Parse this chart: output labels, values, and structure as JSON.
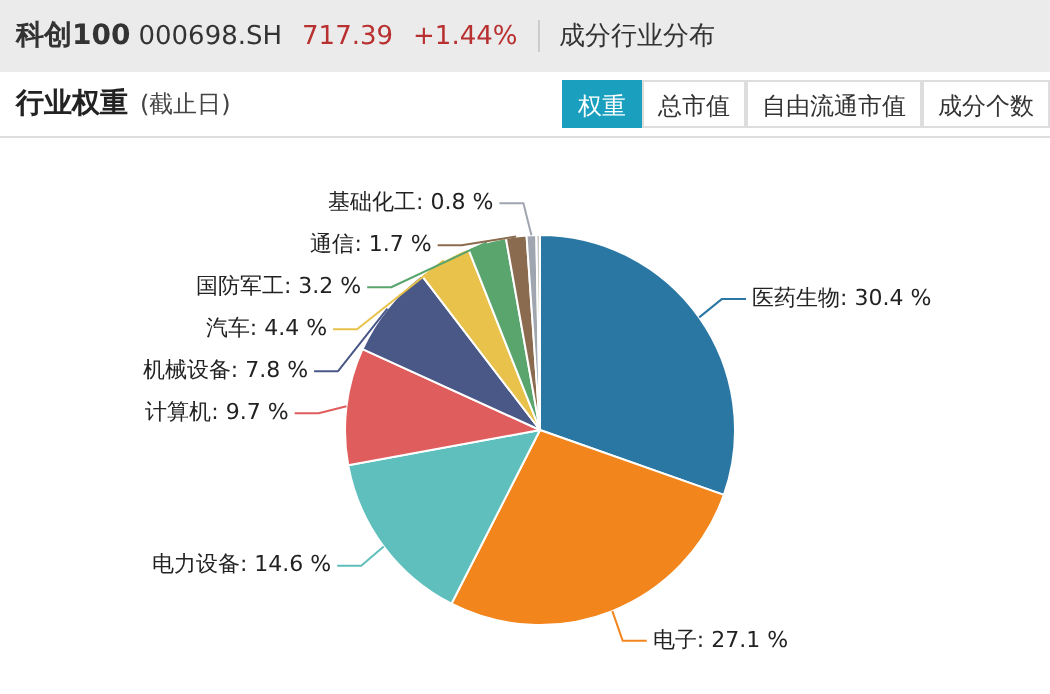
{
  "chart_data": {
    "type": "pie",
    "title": "行业权重",
    "annotations": [
      "科创100",
      "000698.SH",
      "717.39",
      "+1.44%",
      "成分行业分布",
      "(截止日)",
      "权重",
      "总市值",
      "自由流通市值",
      "成分个数"
    ],
    "categories": [
      "医药生物",
      "电子",
      "电力设备",
      "计算机",
      "机械设备",
      "汽车",
      "国防军工",
      "通信",
      "基础化工",
      null
    ],
    "values": [
      30.4,
      27.1,
      14.6,
      9.7,
      7.8,
      4.4,
      3.2,
      1.7,
      0.8,
      0.3
    ],
    "colors": [
      "#2a77a3",
      "#f2861c",
      "#5ebfbd",
      "#e05d5d",
      "#4a5888",
      "#e8c24a",
      "#5aa56e",
      "#8b6b4f",
      "#9fa6b0",
      "#c8c8c8"
    ],
    "value_labels": [
      "30.4 %",
      "27.1 %",
      "14.6 %",
      "9.7 %",
      "7.8 %",
      "4.4 %",
      "3.2 %",
      "1.7 %",
      "0.8 %",
      null
    ]
  }
}
